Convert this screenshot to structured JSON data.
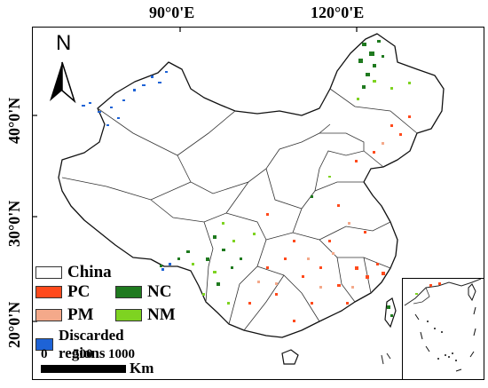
{
  "map": {
    "longitude_labels": [
      "90°0'E",
      "120°0'E"
    ],
    "latitude_labels": [
      "40°0'N",
      "30°0'N",
      "20°0'N"
    ],
    "north_arrow": {
      "label": "N",
      "icon": "north-arrow-icon"
    }
  },
  "legend": {
    "items": [
      {
        "label": "China",
        "color": "#ffffff"
      },
      {
        "label": "PC",
        "color": "#ff4a1c"
      },
      {
        "label": "NC",
        "color": "#1f7a1f"
      },
      {
        "label": "PM",
        "color": "#f4a98a"
      },
      {
        "label": "NM",
        "color": "#7ed321"
      },
      {
        "label": "Discarded regions",
        "color": "#1e63d6"
      }
    ]
  },
  "scale_bar": {
    "ticks": [
      "0",
      "500",
      "1000"
    ],
    "unit": "Km"
  }
}
